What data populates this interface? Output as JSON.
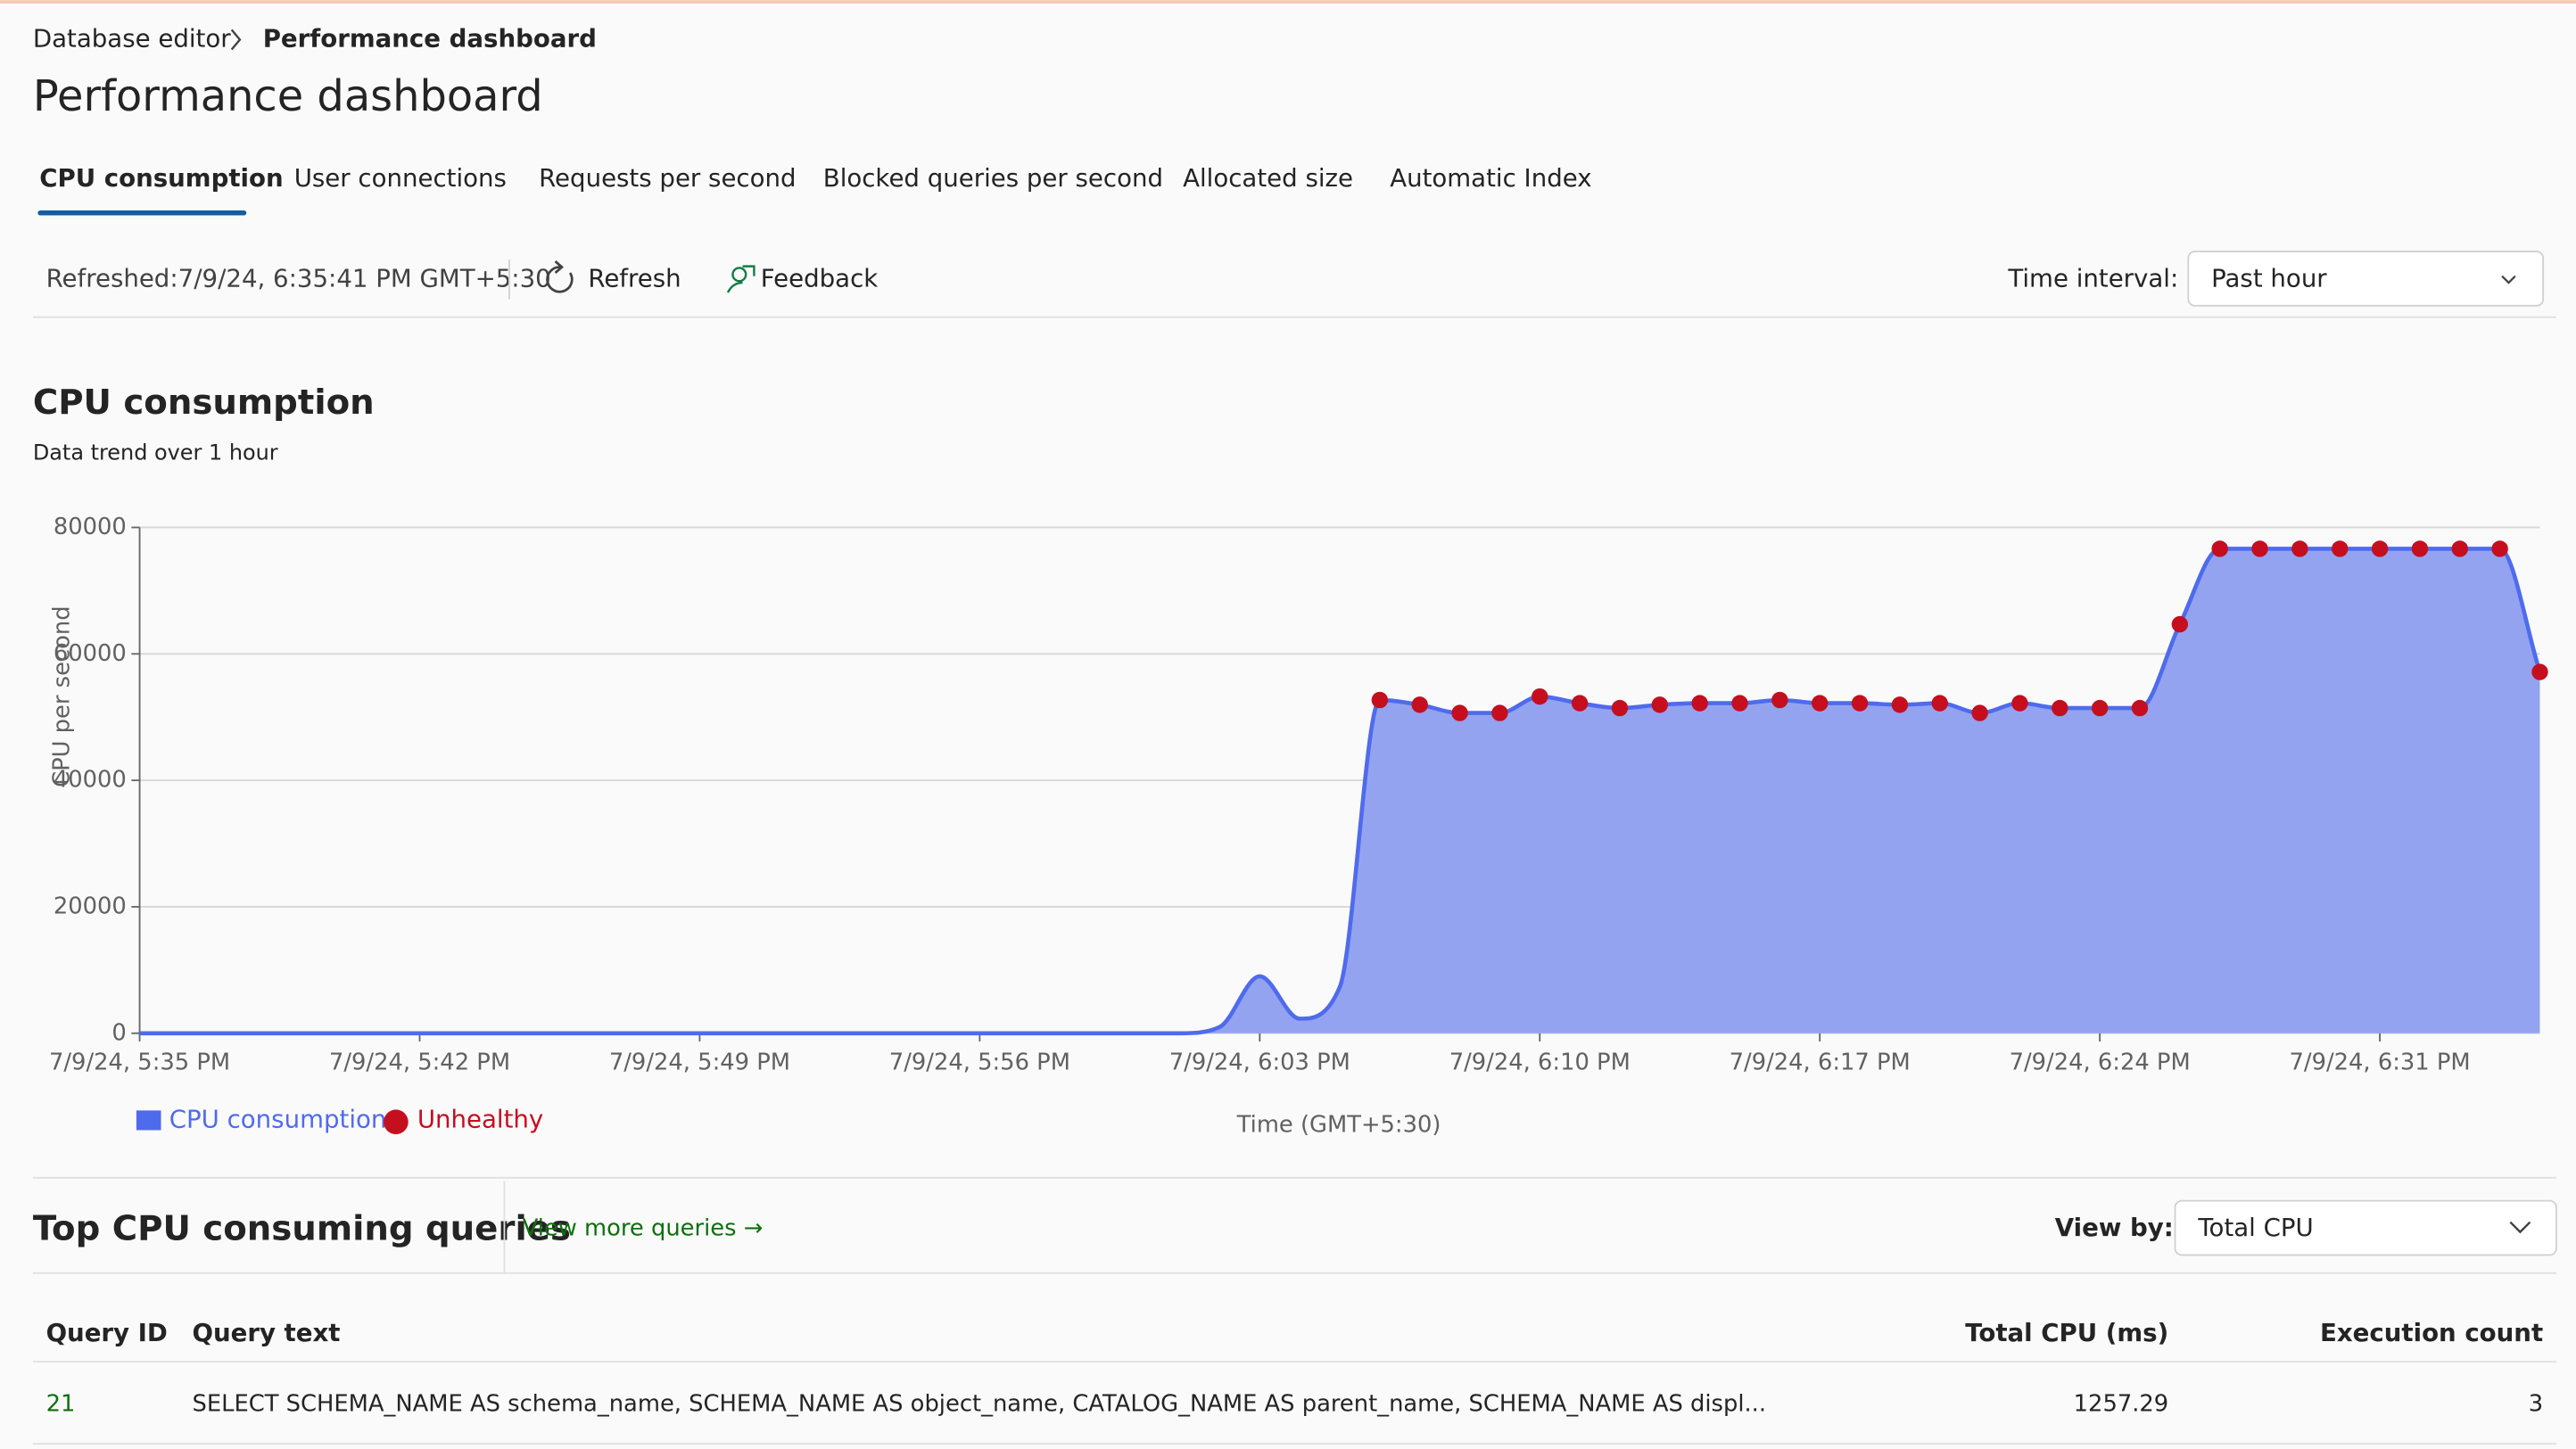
{
  "header": {
    "breadcrumb": [
      "Database editor",
      "Performance dashboard"
    ],
    "title": "Performance dashboard"
  },
  "tabs": [
    "CPU consumption",
    "User connections",
    "Requests per second",
    "Blocked queries per second",
    "Allocated size",
    "Automatic Index"
  ],
  "toolbar": {
    "refreshed": "Refreshed:7/9/24, 6:35:41 PM GMT+5:30",
    "refresh": "Refresh",
    "feedback": "Feedback",
    "interval_label": "Time interval:",
    "interval_value": "Past hour"
  },
  "chart_data": {
    "type": "area",
    "title": "CPU consumption",
    "subtitle": "Data trend over 1 hour",
    "y_label": "CPU per second",
    "x_label": "Time (GMT+5:30)",
    "x": [
      "7/9/24, 5:35 PM",
      "7/9/24, 5:36 PM",
      "7/9/24, 5:37 PM",
      "7/9/24, 5:38 PM",
      "7/9/24, 5:39 PM",
      "7/9/24, 5:40 PM",
      "7/9/24, 5:41 PM",
      "7/9/24, 5:42 PM",
      "7/9/24, 5:43 PM",
      "7/9/24, 5:44 PM",
      "7/9/24, 5:45 PM",
      "7/9/24, 5:46 PM",
      "7/9/24, 5:47 PM",
      "7/9/24, 5:48 PM",
      "7/9/24, 5:49 PM",
      "7/9/24, 5:50 PM",
      "7/9/24, 5:51 PM",
      "7/9/24, 5:52 PM",
      "7/9/24, 5:53 PM",
      "7/9/24, 5:54 PM",
      "7/9/24, 5:55 PM",
      "7/9/24, 5:56 PM",
      "7/9/24, 5:57 PM",
      "7/9/24, 5:58 PM",
      "7/9/24, 5:59 PM",
      "7/9/24, 6:00 PM",
      "7/9/24, 6:01 PM",
      "7/9/24, 6:02 PM",
      "7/9/24, 6:03 PM",
      "7/9/24, 6:04 PM",
      "7/9/24, 6:05 PM",
      "7/9/24, 6:06 PM",
      "7/9/24, 6:07 PM",
      "7/9/24, 6:08 PM",
      "7/9/24, 6:09 PM",
      "7/9/24, 6:10 PM",
      "7/9/24, 6:11 PM",
      "7/9/24, 6:12 PM",
      "7/9/24, 6:13 PM",
      "7/9/24, 6:14 PM",
      "7/9/24, 6:15 PM",
      "7/9/24, 6:16 PM",
      "7/9/24, 6:17 PM",
      "7/9/24, 6:18 PM",
      "7/9/24, 6:19 PM",
      "7/9/24, 6:20 PM",
      "7/9/24, 6:21 PM",
      "7/9/24, 6:22 PM",
      "7/9/24, 6:23 PM",
      "7/9/24, 6:24 PM",
      "7/9/24, 6:25 PM",
      "7/9/24, 6:26 PM",
      "7/9/24, 6:27 PM",
      "7/9/24, 6:28 PM",
      "7/9/24, 6:29 PM",
      "7/9/24, 6:30 PM",
      "7/9/24, 6:31 PM",
      "7/9/24, 6:32 PM",
      "7/9/24, 6:33 PM",
      "7/9/24, 6:34 PM",
      "7/9/24, 6:35 PM"
    ],
    "series": [
      {
        "name": "CPU consumption",
        "color": "#4f6bed",
        "fill": "#93a3f0",
        "values": [
          0,
          0,
          0,
          0,
          0,
          0,
          0,
          0,
          0,
          0,
          0,
          0,
          0,
          0,
          0,
          0,
          0,
          0,
          0,
          0,
          0,
          0,
          0,
          0,
          0,
          0,
          0,
          1000,
          9000,
          2300,
          7300,
          52700,
          51950,
          50650,
          50650,
          53250,
          52200,
          51430,
          51950,
          52200,
          52200,
          52700,
          52200,
          52200,
          51950,
          52200,
          50650,
          52200,
          51430,
          51430,
          51430,
          64680,
          76620,
          76620,
          76620,
          76620,
          76620,
          76620,
          76620,
          76620,
          57140
        ]
      },
      {
        "name": "Unhealthy",
        "color": "#c50f1f",
        "values": [
          null,
          null,
          null,
          null,
          null,
          null,
          null,
          null,
          null,
          null,
          null,
          null,
          null,
          null,
          null,
          null,
          null,
          null,
          null,
          null,
          null,
          null,
          null,
          null,
          null,
          null,
          null,
          null,
          null,
          null,
          null,
          52700,
          51950,
          50650,
          50650,
          53250,
          52200,
          51430,
          51950,
          52200,
          52200,
          52700,
          52200,
          52200,
          51950,
          52200,
          50650,
          52200,
          51430,
          51430,
          51430,
          64680,
          76620,
          76620,
          76620,
          76620,
          76620,
          76620,
          76620,
          76620,
          57140
        ]
      }
    ],
    "xlim": [
      "7/9/24, 5:35 PM",
      "7/9/24, 6:35 PM"
    ],
    "xticks": [
      "7/9/24, 5:35 PM",
      "7/9/24, 5:42 PM",
      "7/9/24, 5:49 PM",
      "7/9/24, 5:56 PM",
      "7/9/24, 6:03 PM",
      "7/9/24, 6:10 PM",
      "7/9/24, 6:17 PM",
      "7/9/24, 6:24 PM",
      "7/9/24, 6:31 PM"
    ],
    "ylim": [
      0,
      80000
    ],
    "yticks": [
      0,
      20000,
      40000,
      60000,
      80000
    ],
    "grid": true
  },
  "queries": {
    "title": "Top CPU consuming queries",
    "more": "View more queries →",
    "view_by_label": "View by:",
    "view_by_value": "Total CPU",
    "table": {
      "columns": [
        "Query ID",
        "Query text",
        "Total CPU (ms)",
        "Execution count"
      ],
      "rows": [
        [
          21,
          "SELECT SCHEMA_NAME AS schema_name, SCHEMA_NAME AS object_name, CATALOG_NAME AS parent_name, SCHEMA_NAME AS displ...",
          1257.29,
          3
        ]
      ]
    }
  }
}
